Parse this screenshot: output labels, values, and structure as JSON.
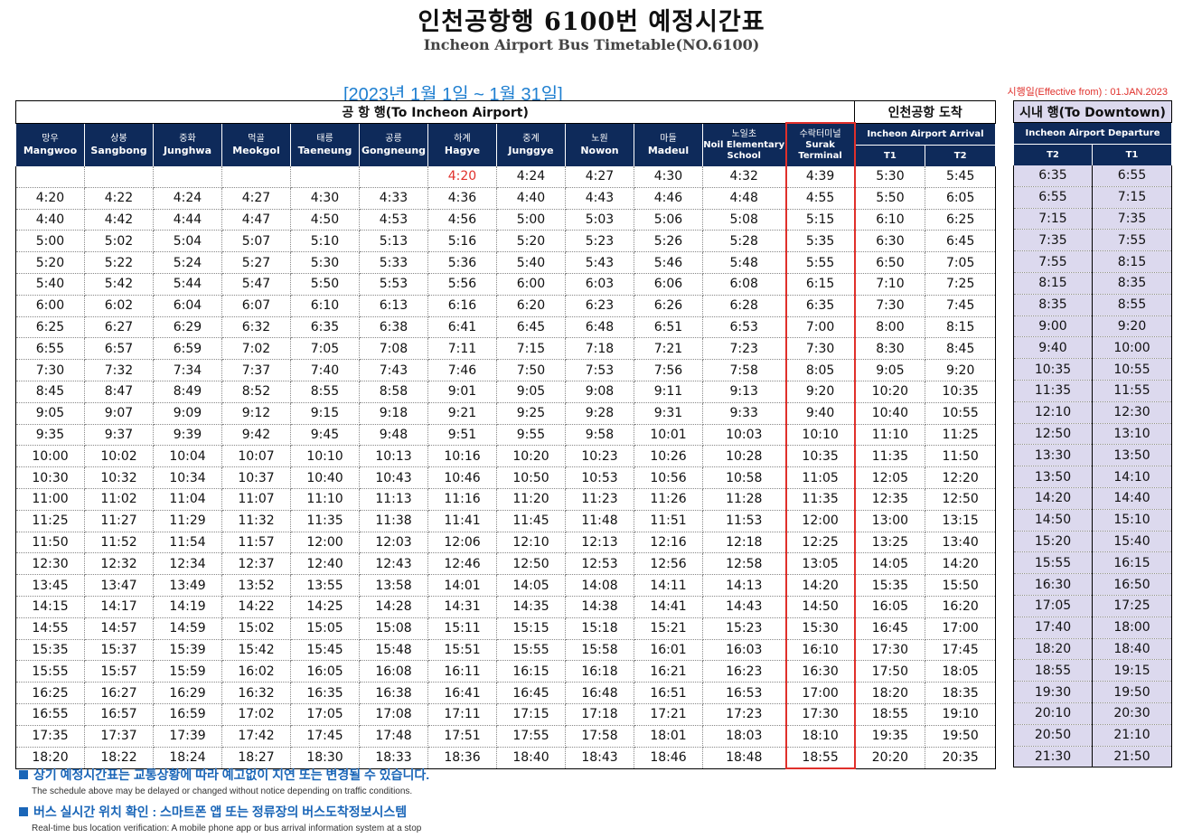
{
  "title": "인천공항행 6100번 예정시간표",
  "subtitle": "Incheon Airport Bus Timetable(NO.6100)",
  "date_range": "[2023년  1월  1일  ~  1월  31일]",
  "effective": "시행일(Effective from) : 01.JAN.2023",
  "groups": {
    "to_airport": "공 항 행(To Incheon Airport)",
    "airport_arrival": "인천공항 도착",
    "to_downtown": "시내 행(To Downtown)"
  },
  "stops": [
    {
      "ko": "망우",
      "en": "Mangwoo"
    },
    {
      "ko": "상봉",
      "en": "Sangbong"
    },
    {
      "ko": "중화",
      "en": "Junghwa"
    },
    {
      "ko": "먹골",
      "en": "Meokgol"
    },
    {
      "ko": "태릉",
      "en": "Taeneung"
    },
    {
      "ko": "공릉",
      "en": "Gongneung"
    },
    {
      "ko": "하계",
      "en": "Hagye"
    },
    {
      "ko": "중계",
      "en": "Junggye"
    },
    {
      "ko": "노원",
      "en": "Nowon"
    },
    {
      "ko": "마들",
      "en": "Madeul"
    },
    {
      "ko": "노일초",
      "en": "Noil Elementary School"
    },
    {
      "ko": "수락터미널",
      "en": "Surak Terminal"
    }
  ],
  "arrival_header": "Incheon Airport Arrival",
  "arrival_terminals": [
    "T1",
    "T2"
  ],
  "departure_header": "Incheon Airport Departure",
  "departure_terminals": [
    "T2",
    "T1"
  ],
  "first_row_highlight_index": 6,
  "rows": [
    [
      "",
      "",
      "",
      "",
      "",
      "",
      "4:20",
      "4:24",
      "4:27",
      "4:30",
      "4:32",
      "4:39",
      "5:30",
      "5:45",
      "6:35",
      "6:55"
    ],
    [
      "4:20",
      "4:22",
      "4:24",
      "4:27",
      "4:30",
      "4:33",
      "4:36",
      "4:40",
      "4:43",
      "4:46",
      "4:48",
      "4:55",
      "5:50",
      "6:05",
      "6:55",
      "7:15"
    ],
    [
      "4:40",
      "4:42",
      "4:44",
      "4:47",
      "4:50",
      "4:53",
      "4:56",
      "5:00",
      "5:03",
      "5:06",
      "5:08",
      "5:15",
      "6:10",
      "6:25",
      "7:15",
      "7:35"
    ],
    [
      "5:00",
      "5:02",
      "5:04",
      "5:07",
      "5:10",
      "5:13",
      "5:16",
      "5:20",
      "5:23",
      "5:26",
      "5:28",
      "5:35",
      "6:30",
      "6:45",
      "7:35",
      "7:55"
    ],
    [
      "5:20",
      "5:22",
      "5:24",
      "5:27",
      "5:30",
      "5:33",
      "5:36",
      "5:40",
      "5:43",
      "5:46",
      "5:48",
      "5:55",
      "6:50",
      "7:05",
      "7:55",
      "8:15"
    ],
    [
      "5:40",
      "5:42",
      "5:44",
      "5:47",
      "5:50",
      "5:53",
      "5:56",
      "6:00",
      "6:03",
      "6:06",
      "6:08",
      "6:15",
      "7:10",
      "7:25",
      "8:15",
      "8:35"
    ],
    [
      "6:00",
      "6:02",
      "6:04",
      "6:07",
      "6:10",
      "6:13",
      "6:16",
      "6:20",
      "6:23",
      "6:26",
      "6:28",
      "6:35",
      "7:30",
      "7:45",
      "8:35",
      "8:55"
    ],
    [
      "6:25",
      "6:27",
      "6:29",
      "6:32",
      "6:35",
      "6:38",
      "6:41",
      "6:45",
      "6:48",
      "6:51",
      "6:53",
      "7:00",
      "8:00",
      "8:15",
      "9:00",
      "9:20"
    ],
    [
      "6:55",
      "6:57",
      "6:59",
      "7:02",
      "7:05",
      "7:08",
      "7:11",
      "7:15",
      "7:18",
      "7:21",
      "7:23",
      "7:30",
      "8:30",
      "8:45",
      "9:40",
      "10:00"
    ],
    [
      "7:30",
      "7:32",
      "7:34",
      "7:37",
      "7:40",
      "7:43",
      "7:46",
      "7:50",
      "7:53",
      "7:56",
      "7:58",
      "8:05",
      "9:05",
      "9:20",
      "10:35",
      "10:55"
    ],
    [
      "8:45",
      "8:47",
      "8:49",
      "8:52",
      "8:55",
      "8:58",
      "9:01",
      "9:05",
      "9:08",
      "9:11",
      "9:13",
      "9:20",
      "10:20",
      "10:35",
      "11:35",
      "11:55"
    ],
    [
      "9:05",
      "9:07",
      "9:09",
      "9:12",
      "9:15",
      "9:18",
      "9:21",
      "9:25",
      "9:28",
      "9:31",
      "9:33",
      "9:40",
      "10:40",
      "10:55",
      "12:10",
      "12:30"
    ],
    [
      "9:35",
      "9:37",
      "9:39",
      "9:42",
      "9:45",
      "9:48",
      "9:51",
      "9:55",
      "9:58",
      "10:01",
      "10:03",
      "10:10",
      "11:10",
      "11:25",
      "12:50",
      "13:10"
    ],
    [
      "10:00",
      "10:02",
      "10:04",
      "10:07",
      "10:10",
      "10:13",
      "10:16",
      "10:20",
      "10:23",
      "10:26",
      "10:28",
      "10:35",
      "11:35",
      "11:50",
      "13:30",
      "13:50"
    ],
    [
      "10:30",
      "10:32",
      "10:34",
      "10:37",
      "10:40",
      "10:43",
      "10:46",
      "10:50",
      "10:53",
      "10:56",
      "10:58",
      "11:05",
      "12:05",
      "12:20",
      "13:50",
      "14:10"
    ],
    [
      "11:00",
      "11:02",
      "11:04",
      "11:07",
      "11:10",
      "11:13",
      "11:16",
      "11:20",
      "11:23",
      "11:26",
      "11:28",
      "11:35",
      "12:35",
      "12:50",
      "14:20",
      "14:40"
    ],
    [
      "11:25",
      "11:27",
      "11:29",
      "11:32",
      "11:35",
      "11:38",
      "11:41",
      "11:45",
      "11:48",
      "11:51",
      "11:53",
      "12:00",
      "13:00",
      "13:15",
      "14:50",
      "15:10"
    ],
    [
      "11:50",
      "11:52",
      "11:54",
      "11:57",
      "12:00",
      "12:03",
      "12:06",
      "12:10",
      "12:13",
      "12:16",
      "12:18",
      "12:25",
      "13:25",
      "13:40",
      "15:20",
      "15:40"
    ],
    [
      "12:30",
      "12:32",
      "12:34",
      "12:37",
      "12:40",
      "12:43",
      "12:46",
      "12:50",
      "12:53",
      "12:56",
      "12:58",
      "13:05",
      "14:05",
      "14:20",
      "15:55",
      "16:15"
    ],
    [
      "13:45",
      "13:47",
      "13:49",
      "13:52",
      "13:55",
      "13:58",
      "14:01",
      "14:05",
      "14:08",
      "14:11",
      "14:13",
      "14:20",
      "15:35",
      "15:50",
      "16:30",
      "16:50"
    ],
    [
      "14:15",
      "14:17",
      "14:19",
      "14:22",
      "14:25",
      "14:28",
      "14:31",
      "14:35",
      "14:38",
      "14:41",
      "14:43",
      "14:50",
      "16:05",
      "16:20",
      "17:05",
      "17:25"
    ],
    [
      "14:55",
      "14:57",
      "14:59",
      "15:02",
      "15:05",
      "15:08",
      "15:11",
      "15:15",
      "15:18",
      "15:21",
      "15:23",
      "15:30",
      "16:45",
      "17:00",
      "17:40",
      "18:00"
    ],
    [
      "15:35",
      "15:37",
      "15:39",
      "15:42",
      "15:45",
      "15:48",
      "15:51",
      "15:55",
      "15:58",
      "16:01",
      "16:03",
      "16:10",
      "17:30",
      "17:45",
      "18:20",
      "18:40"
    ],
    [
      "15:55",
      "15:57",
      "15:59",
      "16:02",
      "16:05",
      "16:08",
      "16:11",
      "16:15",
      "16:18",
      "16:21",
      "16:23",
      "16:30",
      "17:50",
      "18:05",
      "18:55",
      "19:15"
    ],
    [
      "16:25",
      "16:27",
      "16:29",
      "16:32",
      "16:35",
      "16:38",
      "16:41",
      "16:45",
      "16:48",
      "16:51",
      "16:53",
      "17:00",
      "18:20",
      "18:35",
      "19:30",
      "19:50"
    ],
    [
      "16:55",
      "16:57",
      "16:59",
      "17:02",
      "17:05",
      "17:08",
      "17:11",
      "17:15",
      "17:18",
      "17:21",
      "17:23",
      "17:30",
      "18:55",
      "19:10",
      "20:10",
      "20:30"
    ],
    [
      "17:35",
      "17:37",
      "17:39",
      "17:42",
      "17:45",
      "17:48",
      "17:51",
      "17:55",
      "17:58",
      "18:01",
      "18:03",
      "18:10",
      "19:35",
      "19:50",
      "20:50",
      "21:10"
    ],
    [
      "18:20",
      "18:22",
      "18:24",
      "18:27",
      "18:30",
      "18:33",
      "18:36",
      "18:40",
      "18:43",
      "18:46",
      "18:48",
      "18:55",
      "20:20",
      "20:35",
      "21:30",
      "21:50"
    ]
  ],
  "notes": [
    {
      "ko": "상기 예정시간표는 교통상황에 따라 예고없이 지연 또는 변경될 수 있습니다.",
      "en": "The schedule above may be delayed or changed without notice depending on traffic conditions."
    },
    {
      "ko": "버스 실시간 위치 확인 : 스마트폰 앱 또는 정류장의 버스도착정보시스템",
      "en": "Real-time bus location verification: A mobile phone app or bus arrival information system at a stop"
    }
  ],
  "colors": {
    "header_navy": "#0e2a5a",
    "highlight_red": "#e0302b",
    "date_blue": "#1f7fd0",
    "note_blue": "#1a66b8",
    "downtown_shade": "#dcd9ee"
  }
}
